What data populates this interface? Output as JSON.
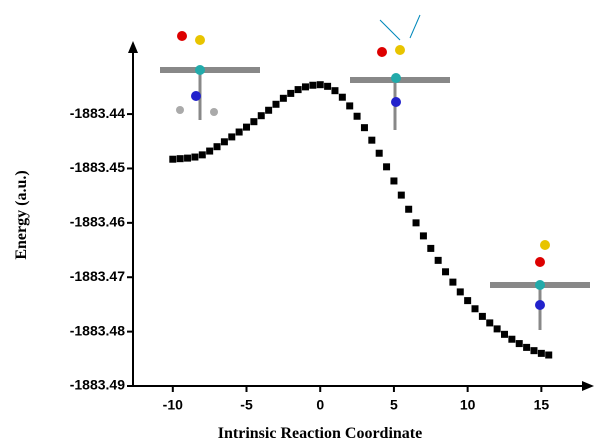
{
  "chart_data": {
    "type": "scatter",
    "color": "#000000",
    "x_label": "Intrinsic Reaction Coordinate",
    "y_label": "Energy (a.u.)",
    "xlim": [
      -12.7,
      18.3
    ],
    "ylim": [
      -1883.49,
      -1883.4273
    ],
    "xticks": [
      -10,
      -5,
      0,
      5,
      10,
      15
    ],
    "yticks": [
      -1883.49,
      -1883.48,
      -1883.47,
      -1883.46,
      -1883.45,
      -1883.44
    ],
    "x": [
      -10,
      -9.5,
      -9,
      -8.5,
      -8,
      -7.5,
      -7,
      -6.5,
      -6,
      -5.5,
      -5,
      -4.5,
      -4,
      -3.5,
      -3,
      -2.5,
      -2,
      -1.5,
      -1,
      -0.5,
      0,
      0.5,
      1,
      1.5,
      2,
      2.5,
      3,
      3.5,
      4,
      4.5,
      5,
      5.5,
      6,
      6.5,
      7,
      7.5,
      8,
      8.5,
      9,
      9.5,
      10,
      10.5,
      11,
      11.5,
      12,
      12.5,
      13,
      13.5,
      14,
      14.5,
      15,
      15.5
    ],
    "values": [
      -1883.4483,
      -1883.4482,
      -1883.4481,
      -1883.4479,
      -1883.4475,
      -1883.4468,
      -1883.446,
      -1883.4451,
      -1883.4442,
      -1883.4433,
      -1883.4424,
      -1883.4414,
      -1883.4403,
      -1883.4393,
      -1883.4382,
      -1883.4371,
      -1883.4362,
      -1883.4355,
      -1883.435,
      -1883.4347,
      -1883.4346,
      -1883.4349,
      -1883.4357,
      -1883.4369,
      -1883.4385,
      -1883.4404,
      -1883.4425,
      -1883.4448,
      -1883.4472,
      -1883.4497,
      -1883.4523,
      -1883.4549,
      -1883.4575,
      -1883.46,
      -1883.4624,
      -1883.4647,
      -1883.4669,
      -1883.469,
      -1883.4709,
      -1883.4727,
      -1883.4743,
      -1883.4758,
      -1883.4772,
      -1883.4784,
      -1883.4795,
      -1883.4805,
      -1883.4814,
      -1883.4822,
      -1883.4829,
      -1883.4835,
      -1883.484,
      -1883.4843
    ]
  }
}
